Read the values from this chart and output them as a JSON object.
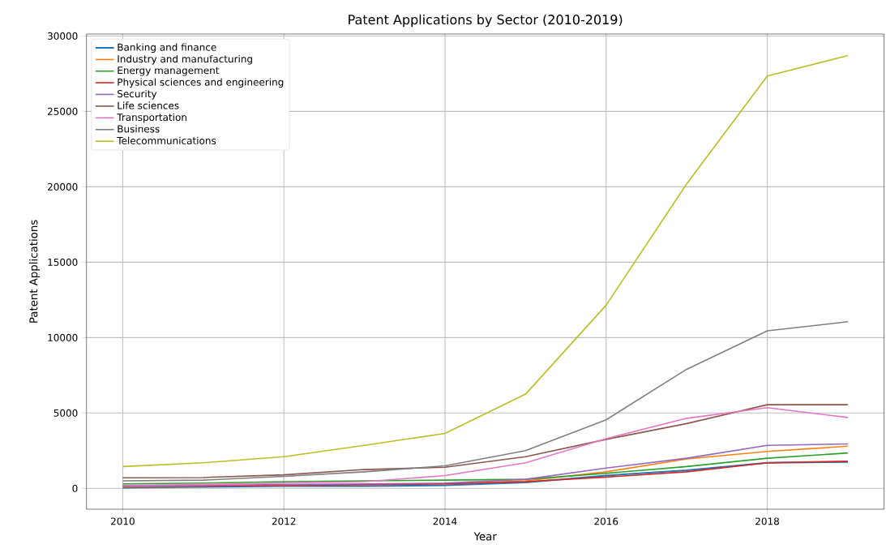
{
  "chart_data": {
    "type": "line",
    "title": "Patent Applications by Sector (2010-2019)",
    "xlabel": "Year",
    "ylabel": "Patent Applications",
    "x": [
      2010,
      2011,
      2012,
      2013,
      2014,
      2015,
      2016,
      2017,
      2018,
      2019
    ],
    "xlim": [
      2009.55,
      2019.45
    ],
    "ylim": [
      -1380,
      30130
    ],
    "xticks": [
      2010,
      2012,
      2014,
      2016,
      2018
    ],
    "yticks": [
      0,
      5000,
      10000,
      15000,
      20000,
      25000,
      30000
    ],
    "grid": true,
    "legend": "top left",
    "line_style": "solid",
    "marker": "none",
    "series": [
      {
        "name": "Banking and finance",
        "color": "#1f77b4",
        "values": [
          50,
          100,
          150,
          150,
          200,
          400,
          850,
          1200,
          1700,
          1750
        ]
      },
      {
        "name": "Industry and manufacturing",
        "color": "#ff7f0e",
        "values": [
          100,
          150,
          200,
          250,
          300,
          500,
          1100,
          1950,
          2450,
          2800
        ]
      },
      {
        "name": "Energy management",
        "color": "#2ca02c",
        "values": [
          300,
          350,
          450,
          500,
          550,
          600,
          1000,
          1450,
          2000,
          2350
        ]
      },
      {
        "name": "Physical sciences and engineering",
        "color": "#d62728",
        "values": [
          150,
          150,
          200,
          250,
          300,
          450,
          750,
          1100,
          1700,
          1800
        ]
      },
      {
        "name": "Security",
        "color": "#9467bd",
        "values": [
          150,
          200,
          250,
          300,
          350,
          600,
          1350,
          2000,
          2850,
          2950
        ]
      },
      {
        "name": "Life sciences",
        "color": "#8c564b",
        "values": [
          700,
          720,
          900,
          1250,
          1400,
          2100,
          3250,
          4300,
          5550,
          5550
        ]
      },
      {
        "name": "Transportation",
        "color": "#e377c2",
        "values": [
          200,
          250,
          350,
          450,
          850,
          1700,
          3300,
          4650,
          5350,
          4700
        ]
      },
      {
        "name": "Business",
        "color": "#7f7f7f",
        "values": [
          500,
          550,
          800,
          1100,
          1500,
          2500,
          4550,
          7900,
          10450,
          11050
        ]
      },
      {
        "name": "Telecommunications",
        "color": "#bcbd22",
        "values": [
          1450,
          1700,
          2100,
          2850,
          3650,
          6250,
          12150,
          20200,
          27350,
          28700
        ]
      }
    ]
  }
}
